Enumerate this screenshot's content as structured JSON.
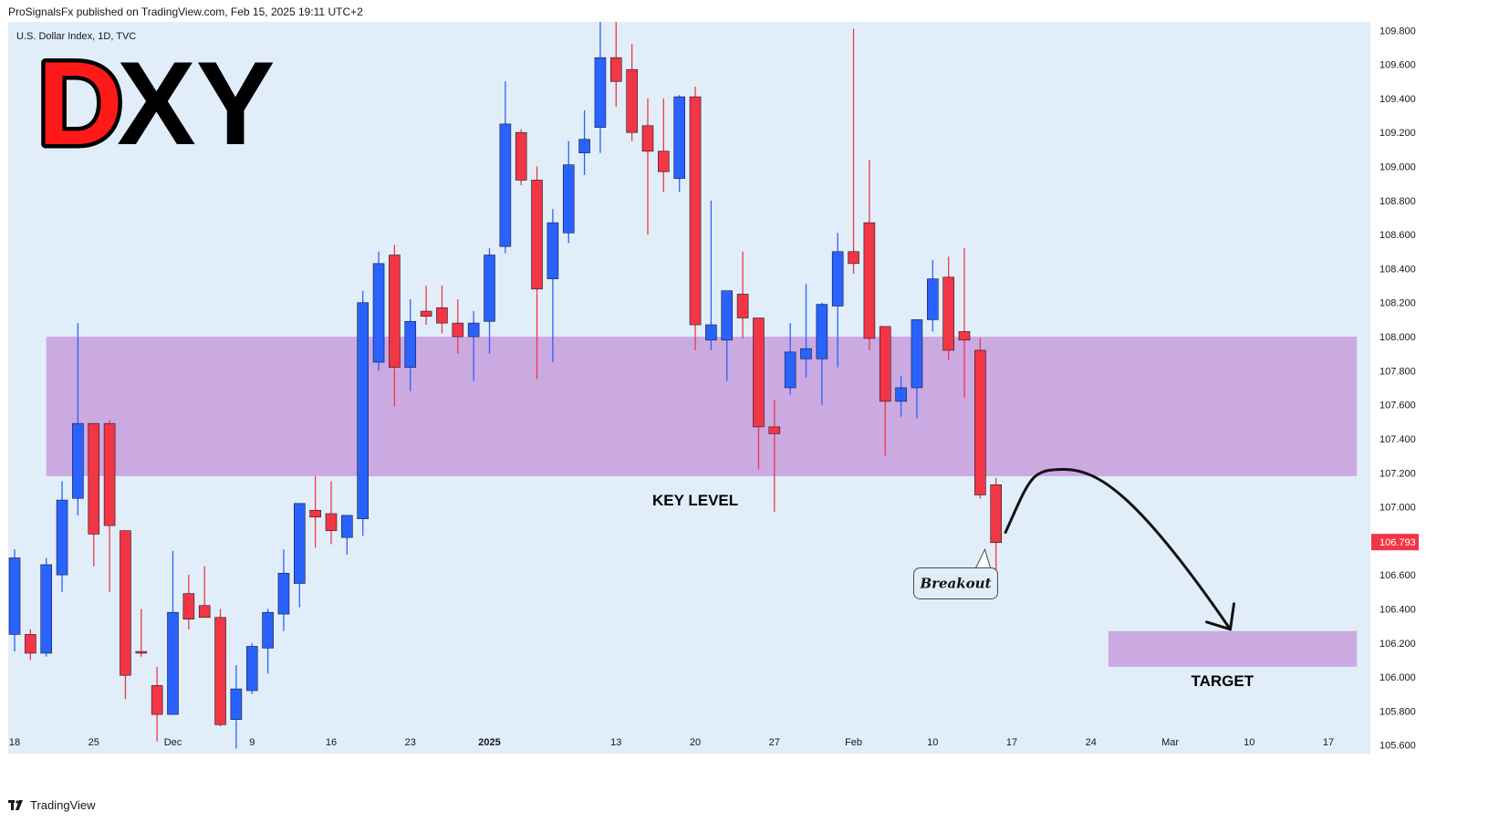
{
  "header": {
    "published_by": "ProSignalsFx published on TradingView.com, Feb 15, 2025 19:11 UTC+2"
  },
  "footer": {
    "brand": "TradingView"
  },
  "colors": {
    "background": "#e1eef9",
    "bull": "#2962ff",
    "bear": "#f23645",
    "zone": "#cba9e1",
    "price_badge": "#f23645",
    "logo_d": "#ff1a1a"
  },
  "chart_data": {
    "type": "candlestick",
    "symbol_info": "U.S. Dollar Index, 1D, TVC",
    "watermark": {
      "letter_1": "D",
      "letter_2": "XY"
    },
    "ylim": [
      105.55,
      109.85
    ],
    "y_ticks": [
      "109.800",
      "109.600",
      "109.400",
      "109.200",
      "109.000",
      "108.800",
      "108.600",
      "108.400",
      "108.200",
      "108.000",
      "107.800",
      "107.600",
      "107.400",
      "107.200",
      "107.000",
      "106.800",
      "106.600",
      "106.400",
      "106.200",
      "106.000",
      "105.800",
      "105.600"
    ],
    "x_ticks": [
      {
        "label": "18",
        "bar": 0
      },
      {
        "label": "25",
        "bar": 5
      },
      {
        "label": "Dec",
        "bar": 10
      },
      {
        "label": "9",
        "bar": 15
      },
      {
        "label": "16",
        "bar": 20
      },
      {
        "label": "23",
        "bar": 25
      },
      {
        "label": "2025",
        "bar": 30,
        "bold": true
      },
      {
        "label": "13",
        "bar": 38
      },
      {
        "label": "20",
        "bar": 43
      },
      {
        "label": "27",
        "bar": 48
      },
      {
        "label": "Feb",
        "bar": 53
      },
      {
        "label": "10",
        "bar": 58
      },
      {
        "label": "17",
        "bar": 63
      },
      {
        "label": "24",
        "bar": 68
      },
      {
        "label": "Mar",
        "bar": 73
      },
      {
        "label": "10",
        "bar": 78
      },
      {
        "label": "17",
        "bar": 83
      }
    ],
    "last_price": "106.793",
    "candles": [
      {
        "o": 106.25,
        "h": 106.75,
        "l": 106.15,
        "c": 106.7
      },
      {
        "o": 106.25,
        "h": 106.28,
        "l": 106.1,
        "c": 106.14
      },
      {
        "o": 106.14,
        "h": 106.7,
        "l": 106.12,
        "c": 106.66
      },
      {
        "o": 106.6,
        "h": 107.15,
        "l": 106.5,
        "c": 107.04
      },
      {
        "o": 107.05,
        "h": 108.08,
        "l": 106.95,
        "c": 107.49
      },
      {
        "o": 107.49,
        "h": 107.49,
        "l": 106.65,
        "c": 106.84
      },
      {
        "o": 107.49,
        "h": 107.51,
        "l": 106.5,
        "c": 106.89
      },
      {
        "o": 106.86,
        "h": 106.86,
        "l": 105.87,
        "c": 106.01
      },
      {
        "o": 106.15,
        "h": 106.4,
        "l": 106.12,
        "c": 106.14
      },
      {
        "o": 105.95,
        "h": 106.06,
        "l": 105.62,
        "c": 105.78
      },
      {
        "o": 105.78,
        "h": 106.74,
        "l": 105.78,
        "c": 106.38
      },
      {
        "o": 106.49,
        "h": 106.6,
        "l": 106.28,
        "c": 106.34
      },
      {
        "o": 106.42,
        "h": 106.65,
        "l": 106.35,
        "c": 106.35
      },
      {
        "o": 106.35,
        "h": 106.4,
        "l": 105.71,
        "c": 105.72
      },
      {
        "o": 105.75,
        "h": 106.07,
        "l": 105.58,
        "c": 105.93
      },
      {
        "o": 105.92,
        "h": 106.2,
        "l": 105.9,
        "c": 106.18
      },
      {
        "o": 106.17,
        "h": 106.4,
        "l": 106.02,
        "c": 106.38
      },
      {
        "o": 106.37,
        "h": 106.75,
        "l": 106.27,
        "c": 106.61
      },
      {
        "o": 106.55,
        "h": 107.0,
        "l": 106.41,
        "c": 107.02
      },
      {
        "o": 106.98,
        "h": 107.18,
        "l": 106.76,
        "c": 106.94
      },
      {
        "o": 106.96,
        "h": 107.15,
        "l": 106.78,
        "c": 106.86
      },
      {
        "o": 106.82,
        "h": 106.95,
        "l": 106.72,
        "c": 106.95
      },
      {
        "o": 106.93,
        "h": 108.27,
        "l": 106.83,
        "c": 108.2
      },
      {
        "o": 107.85,
        "h": 108.5,
        "l": 107.8,
        "c": 108.43
      },
      {
        "o": 108.48,
        "h": 108.54,
        "l": 107.59,
        "c": 107.82
      },
      {
        "o": 107.82,
        "h": 108.22,
        "l": 107.68,
        "c": 108.09
      },
      {
        "o": 108.15,
        "h": 108.3,
        "l": 108.07,
        "c": 108.12
      },
      {
        "o": 108.17,
        "h": 108.3,
        "l": 108.02,
        "c": 108.08
      },
      {
        "o": 108.08,
        "h": 108.22,
        "l": 107.9,
        "c": 108.0
      },
      {
        "o": 108.0,
        "h": 108.15,
        "l": 107.74,
        "c": 108.08
      },
      {
        "o": 108.09,
        "h": 108.52,
        "l": 107.9,
        "c": 108.48
      },
      {
        "o": 108.53,
        "h": 109.5,
        "l": 108.49,
        "c": 109.25
      },
      {
        "o": 109.2,
        "h": 109.22,
        "l": 108.89,
        "c": 108.92
      },
      {
        "o": 108.92,
        "h": 109.0,
        "l": 107.75,
        "c": 108.28
      },
      {
        "o": 108.34,
        "h": 108.75,
        "l": 107.85,
        "c": 108.67
      },
      {
        "o": 108.61,
        "h": 109.15,
        "l": 108.55,
        "c": 109.01
      },
      {
        "o": 109.08,
        "h": 109.33,
        "l": 108.95,
        "c": 109.16
      },
      {
        "o": 109.23,
        "h": 109.85,
        "l": 109.08,
        "c": 109.64
      },
      {
        "o": 109.64,
        "h": 109.85,
        "l": 109.35,
        "c": 109.5
      },
      {
        "o": 109.57,
        "h": 109.72,
        "l": 109.15,
        "c": 109.2
      },
      {
        "o": 109.24,
        "h": 109.4,
        "l": 108.6,
        "c": 109.09
      },
      {
        "o": 109.09,
        "h": 109.4,
        "l": 108.85,
        "c": 108.97
      },
      {
        "o": 108.93,
        "h": 109.42,
        "l": 108.85,
        "c": 109.41
      },
      {
        "o": 109.41,
        "h": 109.47,
        "l": 107.92,
        "c": 108.07
      },
      {
        "o": 107.98,
        "h": 108.8,
        "l": 107.92,
        "c": 108.07
      },
      {
        "o": 107.98,
        "h": 108.27,
        "l": 107.74,
        "c": 108.27
      },
      {
        "o": 108.25,
        "h": 108.5,
        "l": 107.99,
        "c": 108.11
      },
      {
        "o": 108.11,
        "h": 108.1,
        "l": 107.22,
        "c": 107.47
      },
      {
        "o": 107.47,
        "h": 107.63,
        "l": 106.97,
        "c": 107.43
      },
      {
        "o": 107.7,
        "h": 108.08,
        "l": 107.66,
        "c": 107.91
      },
      {
        "o": 107.87,
        "h": 108.31,
        "l": 107.76,
        "c": 107.93
      },
      {
        "o": 107.87,
        "h": 108.2,
        "l": 107.6,
        "c": 108.19
      },
      {
        "o": 108.18,
        "h": 108.61,
        "l": 107.82,
        "c": 108.5
      },
      {
        "o": 108.5,
        "h": 109.81,
        "l": 108.37,
        "c": 108.43
      },
      {
        "o": 108.67,
        "h": 109.04,
        "l": 107.92,
        "c": 107.99
      },
      {
        "o": 108.06,
        "h": 108.06,
        "l": 107.3,
        "c": 107.62
      },
      {
        "o": 107.62,
        "h": 107.77,
        "l": 107.53,
        "c": 107.7
      },
      {
        "o": 107.7,
        "h": 108.1,
        "l": 107.52,
        "c": 108.1
      },
      {
        "o": 108.1,
        "h": 108.45,
        "l": 108.03,
        "c": 108.34
      },
      {
        "o": 108.35,
        "h": 108.47,
        "l": 107.86,
        "c": 107.92
      },
      {
        "o": 108.03,
        "h": 108.52,
        "l": 107.64,
        "c": 107.98
      },
      {
        "o": 107.92,
        "h": 107.99,
        "l": 107.05,
        "c": 107.07
      },
      {
        "o": 107.13,
        "h": 107.17,
        "l": 106.57,
        "c": 106.79
      }
    ],
    "zones": [
      {
        "name": "key-level",
        "y_top": 108.0,
        "y_bottom": 107.18,
        "bar_start": 2,
        "bar_end": 84.8,
        "label": "KEY LEVEL",
        "label_bar": 43.0,
        "label_y": 107.04
      },
      {
        "name": "target",
        "y_top": 106.27,
        "y_bottom": 106.06,
        "bar_start": 69.1,
        "bar_end": 84.8,
        "label": "TARGET",
        "label_bar": 76.3,
        "label_y": 105.98
      }
    ],
    "annotations": {
      "breakout_label": "Breakout",
      "breakout_box": {
        "bar": 56.8,
        "y": 106.55
      },
      "breakout_tail": {
        "bar": 61.3,
        "y": 106.75
      },
      "arrow_path": [
        {
          "bar": 62.6,
          "y": 106.85
        },
        {
          "bar": 64.2,
          "y": 107.18
        },
        {
          "bar": 66.3,
          "y": 107.22
        },
        {
          "bar": 70.9,
          "y": 107.08
        },
        {
          "bar": 76.8,
          "y": 106.28
        }
      ]
    }
  }
}
